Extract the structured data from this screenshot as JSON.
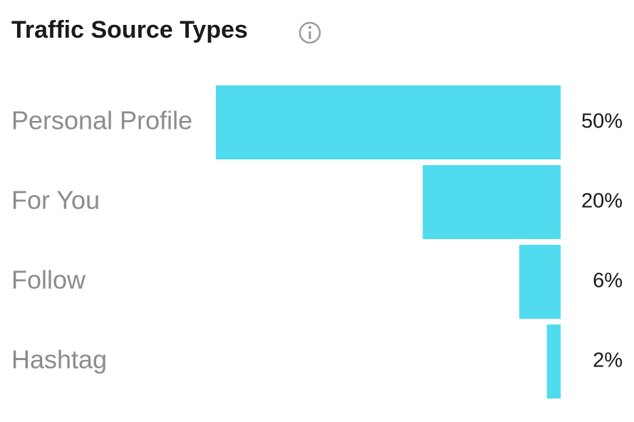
{
  "chart_data": {
    "type": "bar",
    "orientation": "horizontal",
    "title": "Traffic Source Types",
    "categories": [
      "Personal Profile",
      "For You",
      "Follow",
      "Hashtag"
    ],
    "values": [
      50,
      20,
      6,
      2
    ],
    "value_labels": [
      "50%",
      "20%",
      "6%",
      "2%"
    ],
    "color": "#50dcee"
  }
}
